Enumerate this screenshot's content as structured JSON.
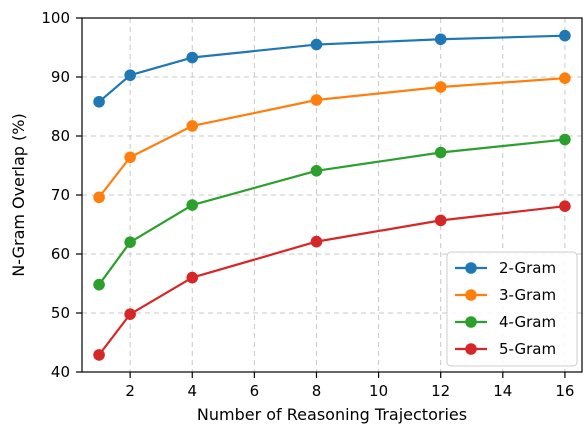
{
  "chart_data": {
    "type": "line",
    "title": "",
    "xlabel": "Number of Reasoning Trajectories",
    "ylabel": "N-Gram Overlap (%)",
    "x": [
      1,
      2,
      4,
      8,
      12,
      16
    ],
    "xlim": [
      0.45,
      16.55
    ],
    "ylim": [
      40,
      100
    ],
    "xticks": [
      2,
      4,
      6,
      8,
      10,
      12,
      14,
      16
    ],
    "yticks": [
      40,
      50,
      60,
      70,
      80,
      90,
      100
    ],
    "grid": true,
    "legend_position": "bottom-right",
    "series": [
      {
        "name": "2-Gram",
        "color": "#1f77b4",
        "values": [
          85.8,
          90.3,
          93.3,
          95.5,
          96.4,
          97.0
        ]
      },
      {
        "name": "3-Gram",
        "color": "#ff7f0e",
        "values": [
          69.6,
          76.4,
          81.7,
          86.1,
          88.3,
          89.8
        ]
      },
      {
        "name": "4-Gram",
        "color": "#2ca02c",
        "values": [
          54.8,
          62.0,
          68.3,
          74.1,
          77.2,
          79.4
        ]
      },
      {
        "name": "5-Gram",
        "color": "#d62728",
        "values": [
          42.9,
          49.8,
          56.0,
          62.1,
          65.7,
          68.1
        ]
      }
    ]
  }
}
